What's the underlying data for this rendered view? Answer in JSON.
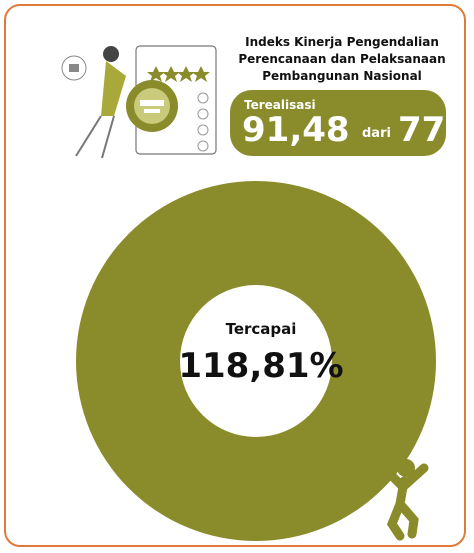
{
  "header": {
    "title": "Indeks Kinerja Pengendalian Perencanaan dan Pelaksanaan Pembangunan Nasional"
  },
  "badge": {
    "label": "Terealisasi",
    "value": "91,48",
    "connector": "dari",
    "target": "77"
  },
  "center": {
    "label": "Tercapai",
    "value": "118,81%"
  }
}
